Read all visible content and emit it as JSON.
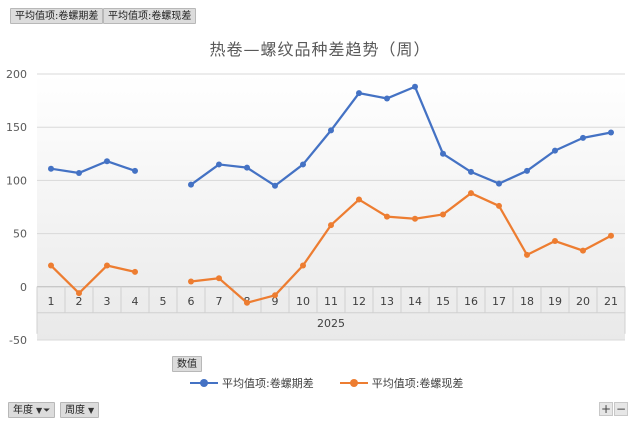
{
  "pivot": {
    "value_fields": [
      "平均值项:卷螺期差",
      "平均值项:卷螺现差"
    ],
    "values_area_label": "数值",
    "row_fields": [
      "年度",
      "周度"
    ],
    "zoom_in": "+",
    "zoom_out": "−"
  },
  "colors": {
    "series1": "#4472c4",
    "series2": "#ed7d31"
  },
  "chart_data": {
    "type": "line",
    "title": "热卷—螺纹品种差趋势（周）",
    "x_group_label": "2025",
    "categories": [
      "1",
      "2",
      "3",
      "4",
      "5",
      "6",
      "7",
      "8",
      "9",
      "10",
      "11",
      "12",
      "13",
      "14",
      "15",
      "16",
      "17",
      "18",
      "19",
      "20",
      "21"
    ],
    "ylim": [
      -50,
      200
    ],
    "yticks": [
      -50,
      0,
      50,
      100,
      150,
      200
    ],
    "grid": true,
    "legend_position": "bottom",
    "series": [
      {
        "name": "平均值项:卷螺期差",
        "values": [
          111,
          107,
          118,
          109,
          null,
          96,
          115,
          112,
          95,
          115,
          147,
          182,
          177,
          188,
          125,
          108,
          97,
          109,
          128,
          140,
          145
        ]
      },
      {
        "name": "平均值项:卷螺现差",
        "values": [
          20,
          -6,
          20,
          14,
          null,
          5,
          8,
          -15,
          -8,
          20,
          58,
          82,
          66,
          64,
          68,
          88,
          76,
          30,
          43,
          34,
          48
        ]
      }
    ]
  }
}
